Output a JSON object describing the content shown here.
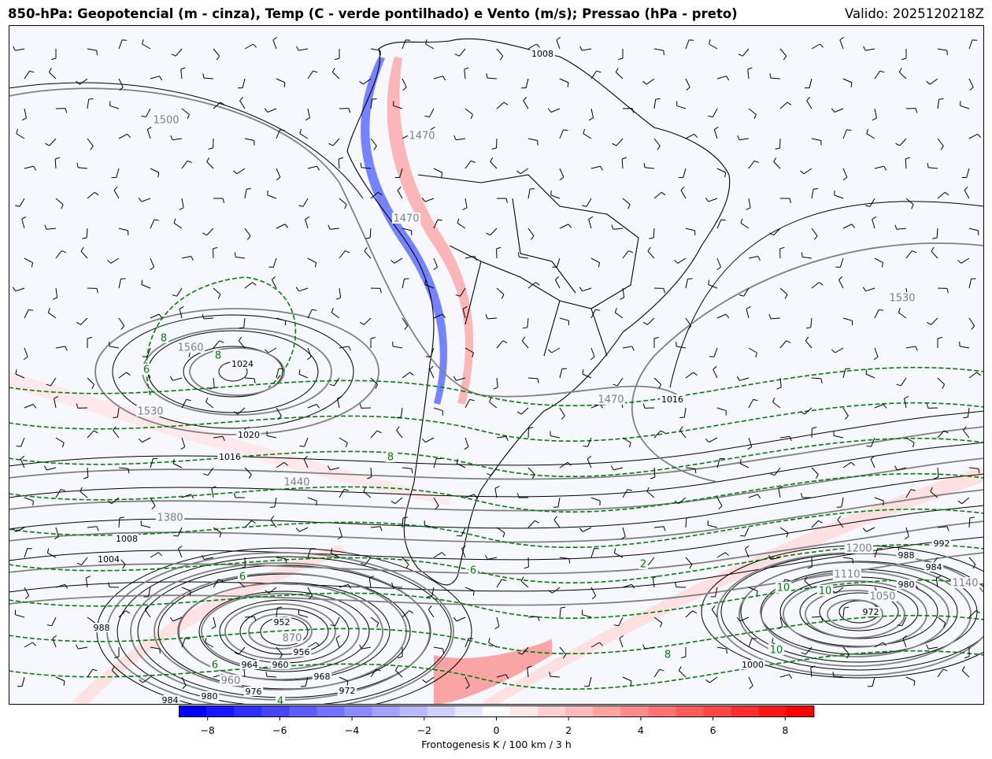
{
  "header": {
    "title": "850-hPa: Geopotencial (m - cinza), Temp (C - verde pontilhado) e Vento (m/s); Pressao (hPa - preto)",
    "valid": "Valido: 2025120218Z"
  },
  "colors": {
    "pressure": "#000000",
    "geopotential": "#808080",
    "temperature": "#008000",
    "negative": "#0000ff",
    "positive": "#ff0000"
  },
  "labels": {
    "pressure": [
      "1008",
      "1024",
      "1020",
      "1016",
      "1016",
      "1008",
      "1004",
      "988",
      "984",
      "980",
      "976",
      "972",
      "968",
      "964",
      "960",
      "956",
      "952",
      "1000",
      "988",
      "984",
      "980",
      "972",
      "992"
    ],
    "geopotential": [
      "1500",
      "1470",
      "1470",
      "1560",
      "1530",
      "1530",
      "1470",
      "1440",
      "1380",
      "1200",
      "1110",
      "1140",
      "1050",
      "870",
      "960"
    ],
    "temperature": [
      "8",
      "8",
      "6",
      "8",
      "10",
      "10",
      "2",
      "6",
      "8",
      "6",
      "4",
      "10",
      "6"
    ]
  },
  "colorbar": {
    "ticks": [
      "−8",
      "−6",
      "−4",
      "−2",
      "0",
      "2",
      "4",
      "6",
      "8"
    ],
    "tick_values": [
      -8,
      -6,
      -4,
      -2,
      0,
      2,
      4,
      6,
      8
    ],
    "range": [
      -8.8,
      8.8
    ],
    "label": "Frontogenesis K / 100 km / 3 h"
  }
}
